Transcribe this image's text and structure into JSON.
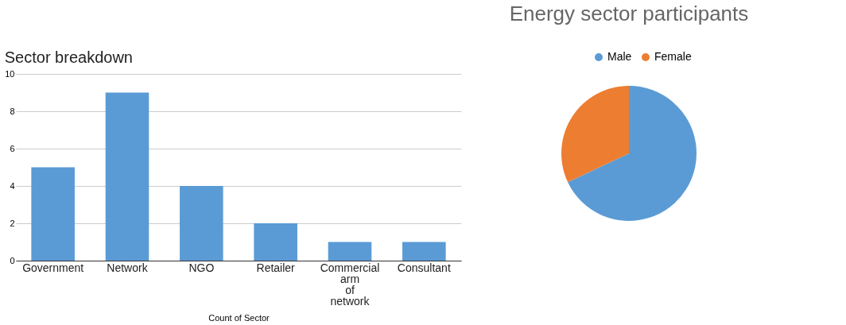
{
  "chart_data": [
    {
      "type": "bar",
      "title": "Sector breakdown",
      "xlabel": "Count of Sector",
      "categories": [
        "Government",
        "Network",
        "NGO",
        "Retailer",
        "Commercial arm of network",
        "Consultant"
      ],
      "values": [
        5,
        9,
        4,
        2,
        1,
        1
      ],
      "color": "#5b9bd5",
      "ylim": [
        0,
        10
      ],
      "yticks": [
        0,
        2,
        4,
        6,
        8,
        10
      ],
      "grid": "y"
    },
    {
      "type": "pie",
      "title": "Energy sector participants",
      "legend": "top right",
      "categories": [
        "Male",
        "Female"
      ],
      "values": [
        68,
        32
      ],
      "colors": [
        "#5b9bd5",
        "#ed7d31"
      ]
    }
  ]
}
